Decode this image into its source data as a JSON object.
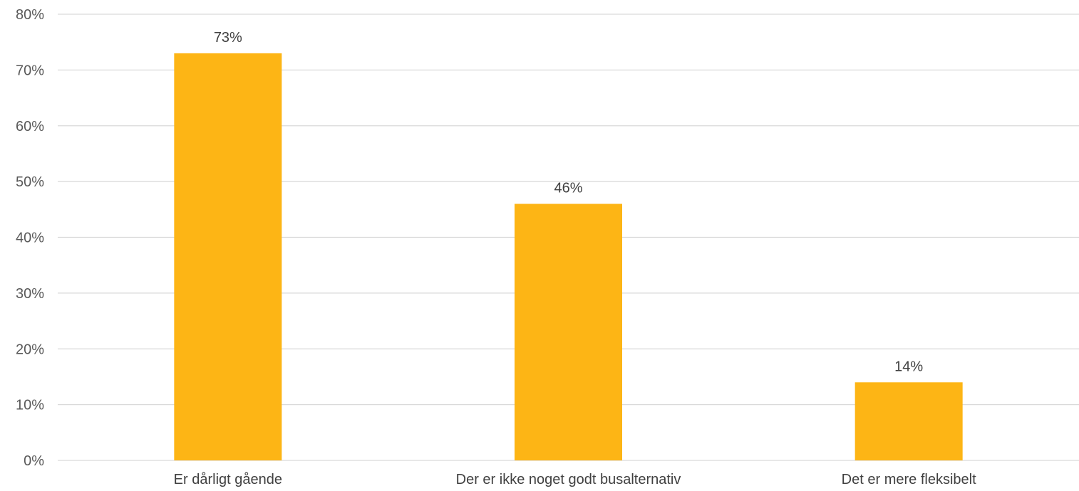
{
  "chart_data": {
    "type": "bar",
    "categories": [
      "Er dårligt gående",
      "Der er ikke noget godt busalternativ",
      "Det er mere fleksibelt"
    ],
    "values": [
      73,
      46,
      14
    ],
    "value_labels": [
      "73%",
      "46%",
      "14%"
    ],
    "title": "",
    "xlabel": "",
    "ylabel": "",
    "ylim": [
      0,
      80
    ],
    "yticks": [
      0,
      10,
      20,
      30,
      40,
      50,
      60,
      70,
      80
    ],
    "ytick_labels": [
      "0%",
      "10%",
      "20%",
      "30%",
      "40%",
      "50%",
      "60%",
      "70%",
      "80%"
    ],
    "grid": true,
    "legend": "none",
    "colors": {
      "bar": "#fdb515",
      "grid": "#d9d9d9",
      "text": "#404040"
    }
  }
}
